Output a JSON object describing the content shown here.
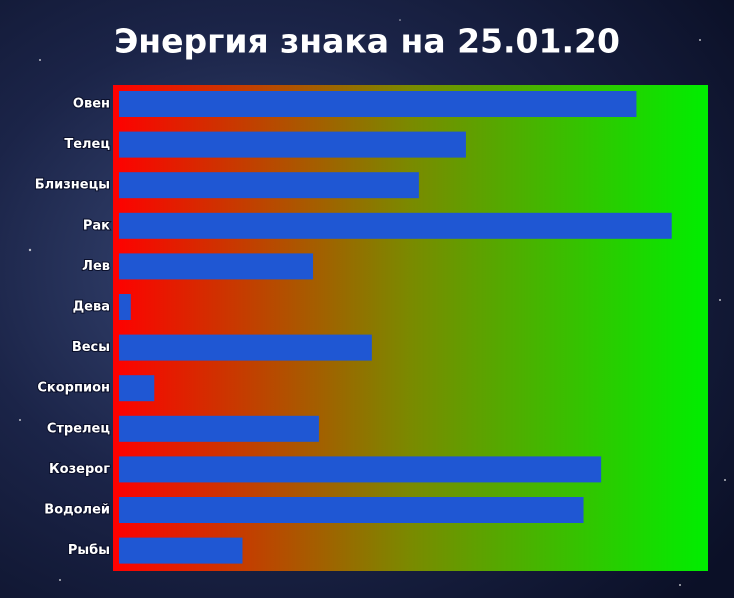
{
  "chart_data": {
    "type": "bar",
    "orientation": "horizontal",
    "title": "Энергия знака на 25.01.20",
    "categories": [
      "Овен",
      "Телец",
      "Близнецы",
      "Рак",
      "Лев",
      "Дева",
      "Весы",
      "Скорпион",
      "Стрелец",
      "Козерог",
      "Водолей",
      "Рыбы"
    ],
    "values": [
      88,
      59,
      51,
      94,
      33,
      2,
      43,
      6,
      34,
      82,
      79,
      21
    ],
    "color": "#1f57d3",
    "xlim": [
      0,
      100
    ]
  }
}
